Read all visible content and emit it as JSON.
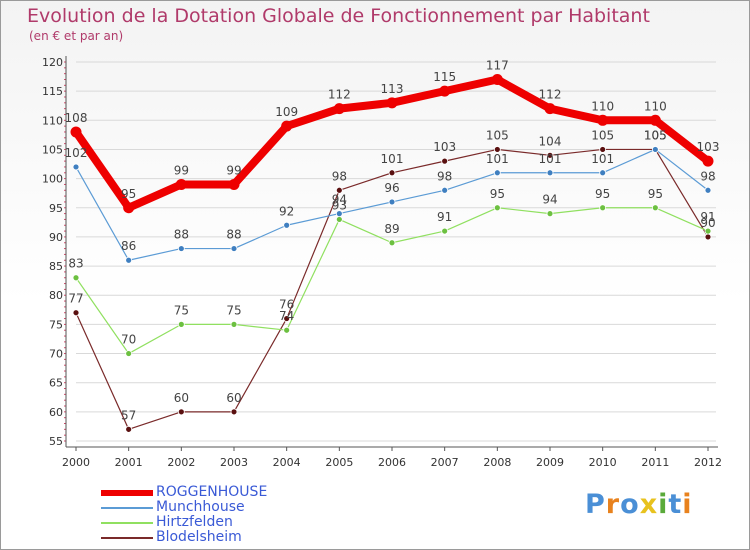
{
  "title": "Evolution de la Dotation Globale de Fonctionnement par Habitant",
  "subtitle": "(en € et par an)",
  "colors": {
    "title": "#b03a6a",
    "axis": "#333333",
    "grid": "#d9d9d9",
    "tick_mark": "#d44a6a",
    "legend_text": "#3a5ad6"
  },
  "logo": {
    "text": "Proxiti",
    "letter_colors": [
      "#4a8fd6",
      "#e8821e",
      "#4a8fd6",
      "#e8c21e",
      "#5aaa3a",
      "#4a8fd6",
      "#e8821e"
    ]
  },
  "chart_data": {
    "type": "line",
    "title": "Evolution de la Dotation Globale de Fonctionnement par Habitant",
    "subtitle": "(en € et par an)",
    "xlabel": "",
    "ylabel": "",
    "x": [
      "2000",
      "2001",
      "2002",
      "2003",
      "2004",
      "2005",
      "2006",
      "2007",
      "2008",
      "2009",
      "2010",
      "2011",
      "2012"
    ],
    "ylim": [
      55,
      120
    ],
    "yticks": [
      55,
      60,
      65,
      70,
      75,
      80,
      85,
      90,
      95,
      100,
      105,
      110,
      115,
      120
    ],
    "grid": "horizontal",
    "legend_position": "bottom-left",
    "series": [
      {
        "name": "ROGGENHOUSE",
        "values": [
          108,
          95,
          99,
          99,
          109,
          112,
          113,
          115,
          117,
          112,
          110,
          110,
          103
        ],
        "color": "#ee0000",
        "marker_color": "#ee0000",
        "width": 8
      },
      {
        "name": "Munchhouse",
        "values": [
          102,
          86,
          88,
          88,
          92,
          94,
          96,
          98,
          101,
          101,
          101,
          105,
          98
        ],
        "color": "#5b9bd5",
        "marker_color": "#3f7fc0",
        "width": 1.2
      },
      {
        "name": "Hirtzfelden",
        "values": [
          83,
          70,
          75,
          75,
          74,
          93,
          89,
          91,
          95,
          94,
          95,
          95,
          91
        ],
        "color": "#90e060",
        "marker_color": "#6cc040",
        "width": 1.2
      },
      {
        "name": "Blodelsheim",
        "values": [
          77,
          57,
          60,
          60,
          76,
          98,
          101,
          103,
          105,
          104,
          105,
          105,
          90
        ],
        "color": "#7a2a2a",
        "marker_color": "#5a1010",
        "width": 1.2
      }
    ]
  }
}
